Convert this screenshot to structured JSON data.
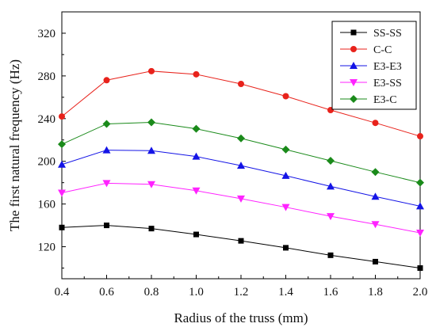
{
  "chart_data": {
    "type": "line",
    "title": "",
    "xlabel": "Radius of the truss (mm)",
    "ylabel": "The first natural frequency (Hz)",
    "xlim": [
      0.4,
      2.0
    ],
    "ylim": [
      90,
      340
    ],
    "xticks": [
      "0.4",
      "0.6",
      "0.8",
      "1.0",
      "1.2",
      "1.4",
      "1.6",
      "1.8",
      "2.0"
    ],
    "yticks": [
      "120",
      "160",
      "200",
      "240",
      "280",
      "320"
    ],
    "grid": false,
    "legend_position": "top-right",
    "x": [
      0.4,
      0.6,
      0.8,
      1.0,
      1.2,
      1.4,
      1.6,
      1.8,
      2.0
    ],
    "series": [
      {
        "name": "SS-SS",
        "color": "#000000",
        "marker": "square",
        "values": [
          138,
          140,
          137,
          131.5,
          125.5,
          119,
          112,
          106,
          100
        ]
      },
      {
        "name": "C-C",
        "color": "#e8221b",
        "marker": "circle",
        "values": [
          242,
          276,
          284.5,
          281.5,
          272.5,
          261,
          248,
          236,
          223.5
        ]
      },
      {
        "name": "E3-E3",
        "color": "#1414e6",
        "marker": "triangle-up",
        "values": [
          197,
          210.5,
          210,
          204.5,
          196,
          186.5,
          176.5,
          167,
          158
        ]
      },
      {
        "name": "E3-SS",
        "color": "#ff22ff",
        "marker": "triangle-down",
        "values": [
          170.5,
          179.5,
          178.5,
          172.5,
          165,
          157,
          148.5,
          141,
          133
        ]
      },
      {
        "name": "E3-C",
        "color": "#1a8a1a",
        "marker": "diamond",
        "values": [
          216,
          235,
          236.5,
          230.5,
          221.5,
          211,
          200.5,
          190,
          180
        ]
      }
    ]
  }
}
